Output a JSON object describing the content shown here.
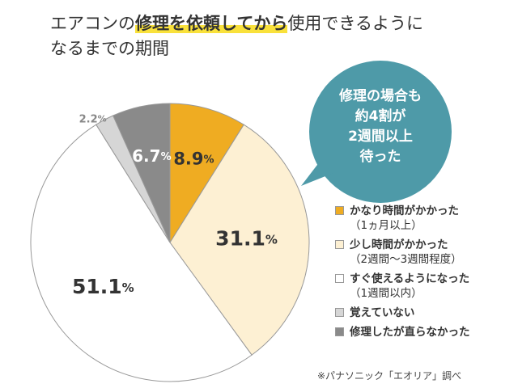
{
  "title": {
    "part1": "エアコンの",
    "highlight": "修理を依頼してから",
    "part2": "使用できるように",
    "line2": "なるまでの期間"
  },
  "callout": {
    "lines": [
      "修理の場合も",
      "約4割が",
      "2週間以上",
      "待った"
    ],
    "color": "#4e9aa8"
  },
  "source": "※パナソニック「エオリア」調べ",
  "chart_data": {
    "type": "pie",
    "unit": "%",
    "slices": [
      {
        "label": "かなり時間がかかった",
        "sublabel": "（1ヵ月以上）",
        "value": 8.9,
        "display": "8.9",
        "color": "#efac22"
      },
      {
        "label": "少し時間がかかった",
        "sublabel": "（2週間〜3週間程度）",
        "value": 31.1,
        "display": "31.1",
        "color": "#fdf0d3"
      },
      {
        "label": "すぐ使えるようになった",
        "sublabel": "（1週間以内）",
        "value": 51.1,
        "display": "51.1",
        "color": "#ffffff"
      },
      {
        "label": "覚えていない",
        "sublabel": "",
        "value": 2.2,
        "display": "2.2",
        "color": "#d6d6d6"
      },
      {
        "label": "修理したが直らなかった",
        "sublabel": "",
        "value": 6.7,
        "display": "6.7",
        "color": "#8a8a8a"
      }
    ]
  }
}
